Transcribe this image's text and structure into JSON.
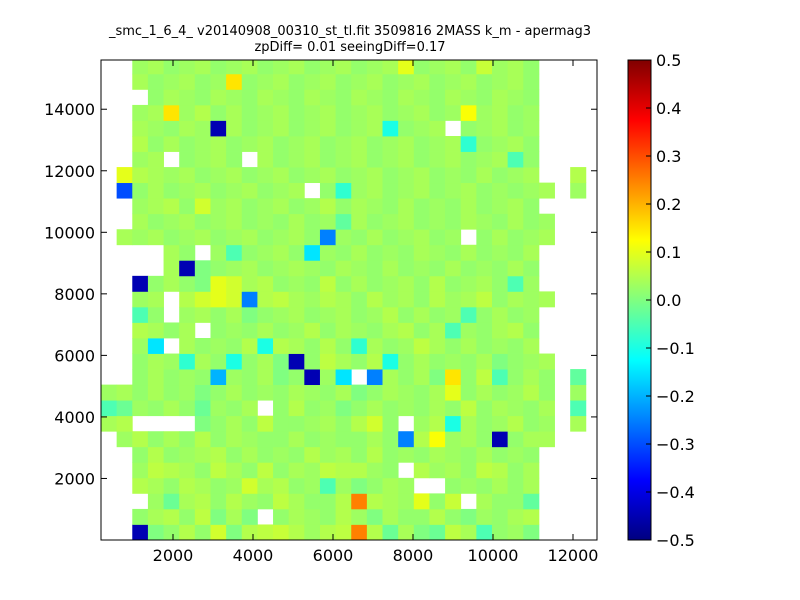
{
  "chart_data": {
    "type": "heatmap",
    "title": "_smc_1_6_4_ v20140908_00310_st_tl.fit 3509816 2MASS k_m - apermag3",
    "subtitle": "zpDiff= 0.01 seeingDiff=0.17",
    "xlabel": "",
    "ylabel": "",
    "xlim": [
      200,
      12600
    ],
    "ylim": [
      0,
      15600
    ],
    "x_ticks": [
      2000,
      4000,
      6000,
      8000,
      10000,
      12000
    ],
    "y_ticks": [
      2000,
      4000,
      6000,
      8000,
      10000,
      12000,
      14000
    ],
    "x_tick_labels": [
      "2000",
      "4000",
      "6000",
      "8000",
      "10000",
      "12000"
    ],
    "y_tick_labels": [
      "2000",
      "4000",
      "6000",
      "8000",
      "10000",
      "12000",
      "14000"
    ],
    "colormap": "jet",
    "colorbar": {
      "min": -0.5,
      "max": 0.5,
      "ticks": [
        0.5,
        0.4,
        0.3,
        0.2,
        0.1,
        0.0,
        -0.1,
        -0.2,
        -0.3,
        -0.4,
        -0.5
      ],
      "tick_labels": [
        "0.5",
        "0.4",
        "0.3",
        "0.2",
        "0.1",
        "0.0",
        "−0.1",
        "−0.2",
        "−0.3",
        "−0.4",
        "−0.5"
      ]
    },
    "grid": {
      "x0": 200,
      "y0": 0,
      "cell_w": 391,
      "cell_h": 505,
      "ncols": 31,
      "nrows": 31,
      "note_empty": "null = no data (white)",
      "values": [
        [
          null,
          null,
          -0.45,
          0.0,
          0.02,
          0.05,
          0.02,
          0.08,
          0.0,
          0.05,
          0.06,
          0.07,
          0.05,
          0.03,
          0.05,
          0.06,
          0.25,
          0.05,
          -0.02,
          0.04,
          0.0,
          -0.02,
          0.06,
          0.04,
          -0.05,
          0.02,
          0.03,
          0.0,
          null,
          null,
          null
        ],
        [
          null,
          null,
          0.02,
          0.04,
          0.05,
          0.02,
          0.06,
          0.0,
          0.04,
          0.0,
          null,
          0.02,
          0.04,
          0.03,
          0.02,
          0.05,
          0.03,
          0.0,
          0.04,
          0.02,
          0.02,
          0.05,
          0.02,
          0.0,
          0.03,
          0.02,
          0.04,
          0.05,
          null,
          null,
          null
        ],
        [
          null,
          null,
          null,
          0.03,
          -0.02,
          0.04,
          0.05,
          0.02,
          0.05,
          0.03,
          0.02,
          0.06,
          0.04,
          0.02,
          0.02,
          0.05,
          0.25,
          0.05,
          0.04,
          0.03,
          0.1,
          0.02,
          0.07,
          null,
          0.04,
          0.02,
          0.02,
          -0.03,
          null,
          null,
          null
        ],
        [
          null,
          null,
          0.05,
          0.04,
          0.02,
          0.05,
          0.04,
          0.02,
          0.03,
          0.08,
          0.04,
          0.05,
          0.02,
          0.03,
          -0.05,
          0.03,
          0.0,
          0.02,
          0.04,
          0.03,
          null,
          null,
          0.02,
          0.03,
          0.02,
          0.04,
          0.02,
          0.04,
          null,
          null,
          null
        ],
        [
          null,
          null,
          0.03,
          0.06,
          0.05,
          0.04,
          0.02,
          0.06,
          0.04,
          0.02,
          0.06,
          0.02,
          0.04,
          0.03,
          0.06,
          0.05,
          0.05,
          0.03,
          0.02,
          null,
          0.05,
          0.03,
          0.04,
          0.02,
          0.06,
          0.05,
          0.02,
          0.04,
          null,
          null,
          null
        ],
        [
          null,
          null,
          0.02,
          0.05,
          0.02,
          0.03,
          0.04,
          0.05,
          0.02,
          0.04,
          0.02,
          0.03,
          0.02,
          0.05,
          0.03,
          0.04,
          0.02,
          0.05,
          0.02,
          0.03,
          0.02,
          0.04,
          0.03,
          0.02,
          0.04,
          0.02,
          0.03,
          0.02,
          null,
          null,
          null
        ],
        [
          null,
          0.03,
          0.05,
          0.02,
          0.04,
          0.02,
          0.05,
          0.02,
          0.04,
          0.03,
          0.02,
          0.02,
          0.04,
          0.02,
          0.03,
          0.02,
          0.02,
          0.04,
          0.02,
          -0.25,
          0.05,
          0.12,
          0.03,
          0.04,
          0.02,
          -0.45,
          0.02,
          0.04,
          0.04,
          null,
          null
        ],
        [
          0.04,
          0.05,
          null,
          null,
          null,
          null,
          0.0,
          0.02,
          0.04,
          0.02,
          0.06,
          0.02,
          0.02,
          0.03,
          0.04,
          0.02,
          0.05,
          0.08,
          0.02,
          null,
          0.03,
          0.05,
          -0.1,
          0.04,
          0.02,
          0.03,
          0.05,
          0.02,
          0.03,
          null,
          0.04
        ],
        [
          -0.05,
          -0.02,
          0.03,
          0.02,
          0.04,
          0.02,
          -0.02,
          0.03,
          0.02,
          0.04,
          null,
          0.02,
          0.05,
          0.02,
          0.03,
          0.0,
          0.02,
          0.04,
          0.02,
          0.03,
          0.02,
          0.04,
          0.02,
          0.06,
          0.02,
          0.04,
          0.03,
          0.02,
          0.04,
          null,
          -0.05
        ],
        [
          0.03,
          0.04,
          0.02,
          0.04,
          0.02,
          0.03,
          0.0,
          0.02,
          0.04,
          0.02,
          0.03,
          0.02,
          0.04,
          0.03,
          0.02,
          0.04,
          0.0,
          0.02,
          0.04,
          0.03,
          0.02,
          0.04,
          0.1,
          0.02,
          0.04,
          0.02,
          0.03,
          0.05,
          0.02,
          null,
          0.03
        ],
        [
          null,
          null,
          0.02,
          0.04,
          0.02,
          0.03,
          0.02,
          -0.2,
          0.03,
          0.02,
          0.04,
          0.0,
          0.02,
          -0.45,
          0.03,
          -0.15,
          null,
          -0.25,
          0.04,
          0.02,
          0.04,
          0.0,
          0.15,
          0.02,
          0.06,
          -0.05,
          0.02,
          0.04,
          0.02,
          null,
          -0.03
        ],
        [
          null,
          null,
          0.02,
          0.04,
          0.03,
          -0.08,
          0.04,
          0.02,
          -0.1,
          0.02,
          0.04,
          0.0,
          -0.45,
          0.02,
          0.06,
          0.04,
          0.02,
          0.05,
          -0.1,
          0.02,
          0.04,
          0.02,
          0.03,
          0.02,
          0.04,
          0.0,
          0.02,
          0.03,
          0.04,
          null,
          null
        ],
        [
          null,
          null,
          0.03,
          -0.15,
          null,
          0.04,
          0.02,
          0.03,
          0.02,
          0.05,
          -0.1,
          0.05,
          0.04,
          0.02,
          0.05,
          0.02,
          -0.08,
          0.04,
          0.02,
          0.03,
          0.06,
          0.04,
          0.02,
          0.04,
          0.02,
          0.03,
          0.02,
          0.04,
          null,
          null,
          null
        ],
        [
          null,
          null,
          0.05,
          0.04,
          0.02,
          0.04,
          null,
          0.02,
          0.03,
          0.02,
          0.04,
          0.02,
          0.03,
          0.05,
          0.02,
          0.04,
          0.03,
          0.02,
          0.04,
          0.05,
          0.02,
          0.04,
          -0.05,
          0.03,
          0.02,
          0.04,
          0.05,
          0.02,
          null,
          null,
          null
        ],
        [
          null,
          null,
          -0.05,
          0.02,
          null,
          0.03,
          0.04,
          0.02,
          0.04,
          0.0,
          0.02,
          0.03,
          0.04,
          0.02,
          0.03,
          0.04,
          0.02,
          0.03,
          0.05,
          0.02,
          0.04,
          0.02,
          0.03,
          -0.05,
          0.02,
          0.04,
          0.02,
          0.03,
          null,
          null,
          null
        ],
        [
          null,
          null,
          0.03,
          0.04,
          null,
          0.05,
          0.08,
          0.1,
          0.08,
          -0.25,
          0.05,
          0.06,
          0.04,
          0.03,
          0.05,
          0.04,
          0.02,
          0.05,
          0.03,
          0.04,
          0.02,
          0.05,
          0.03,
          0.04,
          0.06,
          0.02,
          0.04,
          0.03,
          0.04,
          null,
          null
        ],
        [
          null,
          null,
          -0.45,
          0.02,
          0.04,
          0.02,
          0.0,
          0.1,
          0.08,
          0.04,
          0.05,
          0.02,
          0.03,
          0.02,
          0.06,
          0.02,
          0.04,
          0.02,
          0.03,
          0.04,
          0.02,
          0.05,
          0.02,
          0.03,
          0.04,
          0.02,
          -0.05,
          0.03,
          null,
          null,
          null
        ],
        [
          null,
          null,
          null,
          null,
          0.04,
          -0.45,
          0.0,
          0.02,
          0.03,
          0.04,
          0.02,
          0.03,
          0.04,
          0.03,
          0.02,
          0.04,
          0.03,
          0.02,
          0.04,
          0.02,
          0.03,
          0.02,
          0.04,
          0.02,
          0.03,
          0.02,
          0.04,
          0.02,
          null,
          null,
          null
        ],
        [
          null,
          null,
          null,
          null,
          0.04,
          0.02,
          null,
          0.03,
          -0.05,
          0.02,
          0.03,
          0.04,
          0.02,
          -0.15,
          0.03,
          0.02,
          0.04,
          0.02,
          0.03,
          0.02,
          0.04,
          0.03,
          0.02,
          0.04,
          0.02,
          0.03,
          0.02,
          0.04,
          null,
          null,
          null
        ],
        [
          null,
          0.04,
          0.03,
          0.04,
          0.02,
          0.03,
          0.04,
          0.02,
          0.03,
          0.04,
          0.02,
          0.03,
          0.04,
          0.02,
          -0.25,
          0.03,
          0.02,
          0.04,
          0.02,
          0.03,
          0.04,
          0.02,
          0.03,
          null,
          0.02,
          0.04,
          0.02,
          0.03,
          0.04,
          null,
          null
        ],
        [
          null,
          null,
          0.04,
          0.02,
          0.03,
          0.04,
          0.02,
          0.03,
          0.04,
          0.02,
          0.03,
          0.02,
          0.04,
          0.02,
          0.03,
          -0.03,
          0.04,
          0.02,
          0.03,
          0.04,
          0.02,
          0.03,
          0.02,
          0.04,
          0.03,
          0.02,
          0.04,
          0.02,
          0.03,
          null,
          null
        ],
        [
          null,
          null,
          0.03,
          0.04,
          0.05,
          0.02,
          0.08,
          0.03,
          0.04,
          0.02,
          0.03,
          0.04,
          0.02,
          0.03,
          0.05,
          0.02,
          0.04,
          0.03,
          0.02,
          0.04,
          0.02,
          0.03,
          0.02,
          0.04,
          0.02,
          0.03,
          0.04,
          0.02,
          null,
          null,
          null
        ],
        [
          null,
          -0.3,
          0.02,
          0.04,
          0.02,
          0.03,
          0.04,
          0.02,
          0.03,
          0.04,
          0.02,
          0.03,
          0.04,
          null,
          0.02,
          -0.08,
          0.03,
          0.04,
          0.02,
          0.03,
          0.04,
          0.02,
          0.03,
          0.04,
          0.02,
          0.03,
          0.02,
          0.03,
          0.04,
          null,
          0.03
        ],
        [
          null,
          0.1,
          0.05,
          0.04,
          0.03,
          0.04,
          0.02,
          0.03,
          0.04,
          0.02,
          0.03,
          0.04,
          0.02,
          0.03,
          0.04,
          0.02,
          0.03,
          0.04,
          0.02,
          0.03,
          0.04,
          0.02,
          0.03,
          0.02,
          0.04,
          0.02,
          0.03,
          0.04,
          null,
          null,
          0.05
        ],
        [
          null,
          null,
          0.03,
          0.04,
          null,
          0.02,
          0.03,
          0.04,
          0.02,
          null,
          0.04,
          0.02,
          0.03,
          0.04,
          0.02,
          0.03,
          0.04,
          0.02,
          0.03,
          0.04,
          0.02,
          0.03,
          0.04,
          0.02,
          0.03,
          0.04,
          -0.05,
          0.02,
          null,
          null,
          null
        ],
        [
          null,
          null,
          0.05,
          0.02,
          0.04,
          0.02,
          0.03,
          0.04,
          0.02,
          0.03,
          0.04,
          0.02,
          0.03,
          0.04,
          0.02,
          0.03,
          0.04,
          0.02,
          0.03,
          0.04,
          0.02,
          0.03,
          0.04,
          -0.08,
          0.02,
          0.03,
          0.04,
          0.02,
          null,
          null,
          null
        ],
        [
          null,
          null,
          0.04,
          0.03,
          0.02,
          0.04,
          0.03,
          -0.45,
          0.04,
          0.02,
          0.03,
          0.04,
          0.02,
          0.03,
          0.04,
          0.02,
          0.03,
          0.04,
          -0.1,
          0.02,
          0.03,
          0.04,
          null,
          0.02,
          0.03,
          0.04,
          0.02,
          0.03,
          null,
          null,
          null
        ],
        [
          null,
          null,
          0.03,
          0.04,
          0.15,
          0.03,
          0.05,
          0.02,
          0.04,
          0.02,
          0.03,
          0.04,
          0.02,
          0.03,
          0.04,
          0.02,
          0.03,
          0.04,
          0.02,
          0.03,
          0.04,
          0.02,
          0.03,
          0.12,
          0.03,
          0.04,
          0.02,
          0.03,
          null,
          null,
          null
        ],
        [
          null,
          null,
          null,
          0.02,
          0.04,
          0.03,
          0.02,
          0.04,
          0.03,
          0.02,
          0.04,
          0.03,
          0.02,
          0.04,
          0.03,
          0.02,
          0.04,
          0.03,
          0.02,
          0.04,
          0.03,
          0.02,
          0.04,
          0.03,
          0.02,
          0.04,
          0.03,
          0.02,
          null,
          null,
          null
        ],
        [
          null,
          null,
          0.04,
          0.02,
          0.03,
          0.04,
          0.02,
          0.03,
          0.15,
          0.02,
          0.03,
          0.04,
          0.02,
          0.03,
          0.04,
          0.02,
          0.03,
          0.04,
          0.02,
          0.03,
          0.04,
          0.02,
          0.03,
          0.04,
          0.02,
          0.03,
          0.04,
          0.02,
          null,
          null,
          null
        ],
        [
          null,
          null,
          0.03,
          0.04,
          0.02,
          0.03,
          0.04,
          0.02,
          0.03,
          0.04,
          0.02,
          0.03,
          0.04,
          0.02,
          0.03,
          0.04,
          0.02,
          0.03,
          0.04,
          0.1,
          0.02,
          0.03,
          0.04,
          0.02,
          0.07,
          0.03,
          0.04,
          0.02,
          null,
          null,
          null
        ]
      ]
    }
  }
}
